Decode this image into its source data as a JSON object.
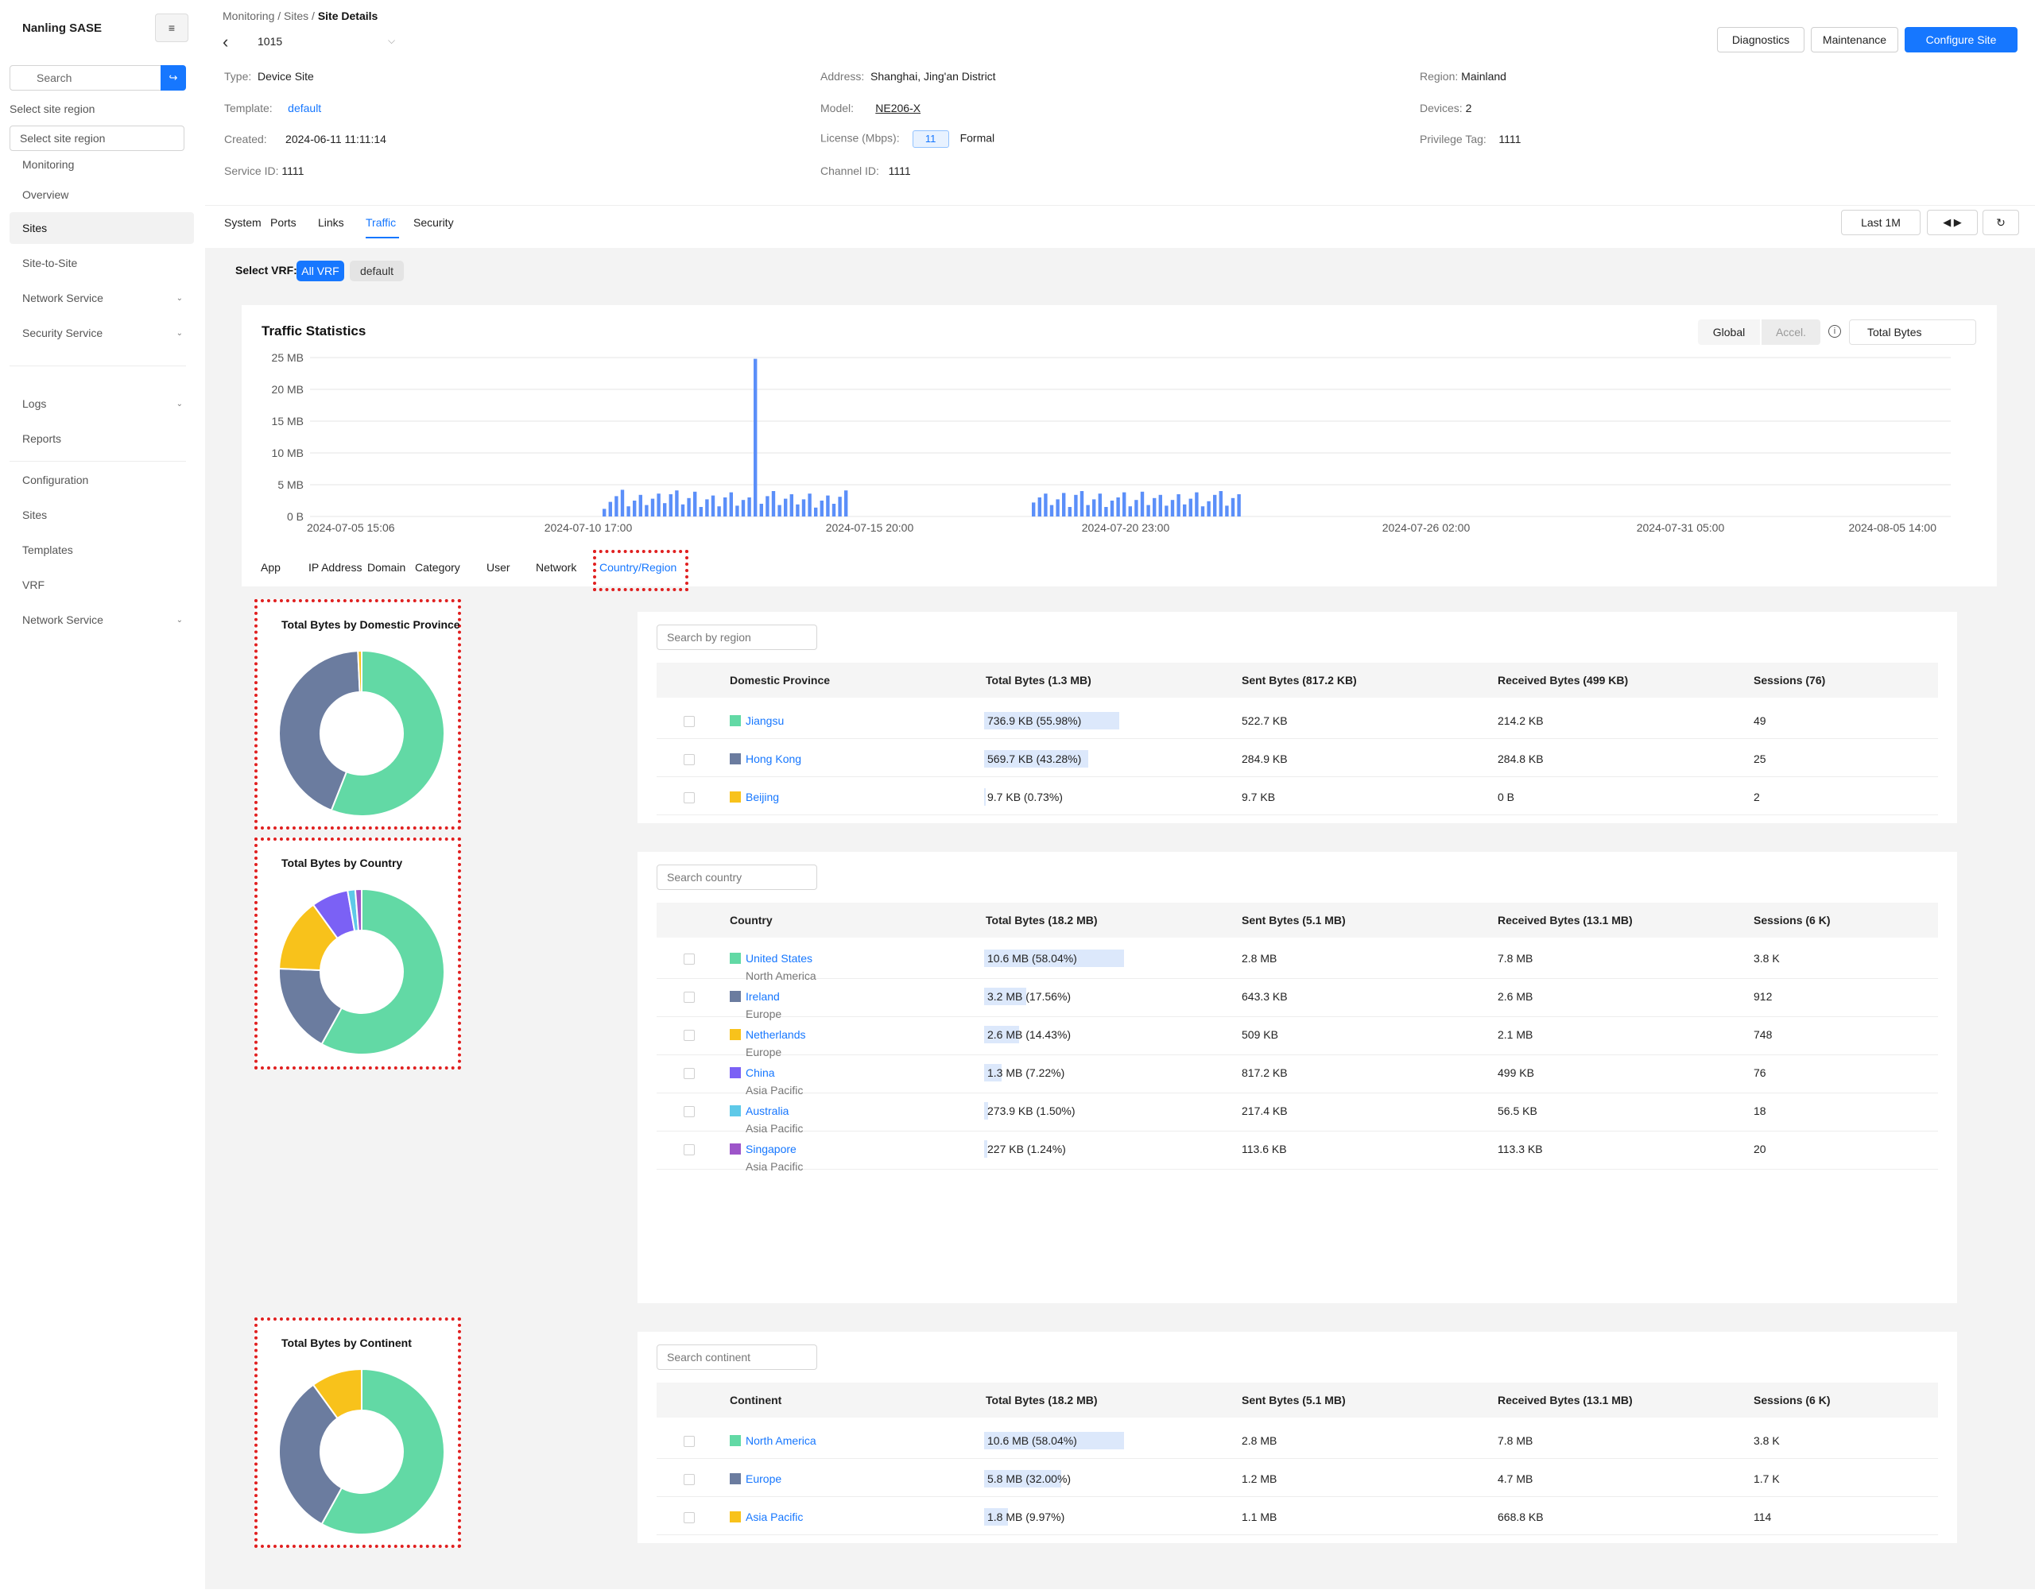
{
  "app": {
    "title": "Nanling SASE",
    "menu_icon": "hamburger-icon"
  },
  "sidebar": {
    "search_placeholder": "Search",
    "region_label": "Select site region",
    "region_placeholder": "Select site region",
    "items": [
      {
        "label": "Monitoring"
      },
      {
        "label": "Overview"
      },
      {
        "label": "Sites",
        "active": true
      },
      {
        "label": "Site-to-Site"
      },
      {
        "label": "Network Service"
      },
      {
        "label": "Security Service"
      },
      {
        "label": "Logs"
      },
      {
        "label": "Reports"
      },
      {
        "label": "Configuration"
      },
      {
        "label": "Sites"
      },
      {
        "label": "Templates"
      },
      {
        "label": "VRF"
      },
      {
        "label": "Network Service"
      }
    ]
  },
  "header": {
    "breadcrumb": "Monitoring / Sites / ",
    "breadcrumb_current": "Site Details",
    "site_id": "1015",
    "buttons": {
      "diagnostics": "Diagnostics",
      "maintenance": "Maintenance",
      "configure": "Configure Site"
    }
  },
  "info": {
    "type_label": "Type:",
    "type_value": "Device Site",
    "template_label": "Template:",
    "template_value": "default",
    "created_label": "Created:",
    "created_value": "2024-06-11 11:11:14",
    "service_label": "Service ID:",
    "service_value": "1111",
    "address_label": "Address:",
    "address_value": "Shanghai, Jing'an District",
    "model_label": "Model:",
    "model_value": "NE206-X",
    "license_label": "License (Mbps):",
    "license_value": "11",
    "license_type": "Formal",
    "channel_label": "Channel ID:",
    "channel_value": "1111",
    "region_label": "Region:",
    "region_value": "Mainland",
    "devices_label": "Devices:",
    "devices_value": "2",
    "privilege_label": "Privilege Tag:",
    "privilege_value": "1111"
  },
  "tabs": {
    "system": "System",
    "ports": "Ports",
    "links": "Links",
    "traffic": "Traffic",
    "security": "Security"
  },
  "controls": {
    "range": "Last 1M",
    "refresh_icon": "refresh-icon",
    "arrows": "◀ ▶"
  },
  "vrf": {
    "label": "Select VRF:",
    "all": "All VRF",
    "default": "default"
  },
  "traffic": {
    "title": "Traffic Statistics",
    "seg_global": "Global",
    "seg_accel": "Accel.",
    "metric": "Total Bytes"
  },
  "chart_data": {
    "type": "bar",
    "title": "Traffic Statistics",
    "y_ticks": [
      "0 B",
      "5 MB",
      "10 MB",
      "15 MB",
      "20 MB",
      "25 MB"
    ],
    "ylim": [
      0,
      25
    ],
    "x_tick_labels": [
      "2024-07-05 15:06",
      "2024-07-10 17:00",
      "2024-07-15 20:00",
      "2024-07-20 23:00",
      "2024-07-26 02:00",
      "2024-07-31 05:00",
      "2024-08-05 14:00"
    ],
    "bar_color": "#5b8ff9",
    "groups": [
      {
        "values_mb": [
          1.2,
          2.3,
          3.2,
          4.2,
          1.6,
          2.5,
          3.4,
          1.8,
          2.8,
          3.6,
          2.1,
          3.5,
          4.1,
          1.9,
          2.9,
          3.9,
          1.5,
          2.7,
          3.3,
          1.6,
          3.0,
          3.8,
          1.7,
          2.6,
          3.0,
          24.8,
          2.0,
          3.2,
          4.0,
          1.8,
          2.8,
          3.5,
          1.9,
          2.7,
          3.6,
          1.4,
          2.5,
          3.3,
          2.0,
          3.1,
          4.1
        ]
      },
      {
        "values_mb": [
          2.2,
          3.0,
          3.6,
          1.8,
          2.7,
          3.7,
          1.5,
          3.4,
          4.0,
          1.8,
          2.7,
          3.6,
          1.5,
          2.5,
          3.0,
          3.8,
          1.6,
          2.6,
          3.9,
          1.8,
          2.9,
          3.4,
          1.7,
          2.6,
          3.5,
          1.9,
          2.8,
          3.8,
          1.6,
          2.4,
          3.4,
          4.0,
          1.7,
          2.9,
          3.5
        ]
      }
    ]
  },
  "sub_tabs": {
    "app": "App",
    "ip": "IP Address",
    "domain": "Domain",
    "category": "Category",
    "user": "User",
    "network": "Network",
    "country": "Country/Region"
  },
  "province": {
    "donut_title": "Total Bytes by Domestic Province",
    "search_placeholder": "Search by region",
    "headers": {
      "name": "Domestic Province",
      "total": "Total Bytes (1.3 MB)",
      "sent": "Sent Bytes (817.2 KB)",
      "received": "Received Bytes (499 KB)",
      "sessions": "Sessions (76)"
    },
    "rows": [
      {
        "name": "Jiangsu",
        "color": "#62d9a5",
        "total": "736.9 KB (55.98%)",
        "pct": 55.98,
        "sent": "522.7 KB",
        "received": "214.2 KB",
        "sessions": "49"
      },
      {
        "name": "Hong Kong",
        "color": "#6b7c9f",
        "total": "569.7 KB (43.28%)",
        "pct": 43.28,
        "sent": "284.9 KB",
        "received": "284.8 KB",
        "sessions": "25"
      },
      {
        "name": "Beijing",
        "color": "#f8c21b",
        "total": "9.7 KB (0.73%)",
        "pct": 0.73,
        "sent": "9.7 KB",
        "received": "0 B",
        "sessions": "2"
      }
    ]
  },
  "country": {
    "donut_title": "Total Bytes by Country",
    "search_placeholder": "Search country",
    "headers": {
      "name": "Country",
      "total": "Total Bytes (18.2 MB)",
      "sent": "Sent Bytes (5.1 MB)",
      "received": "Received Bytes (13.1 MB)",
      "sessions": "Sessions (6 K)"
    },
    "rows": [
      {
        "name": "United States",
        "region": "North America",
        "color": "#62d9a5",
        "total": "10.6 MB (58.04%)",
        "pct": 58.04,
        "sent": "2.8 MB",
        "received": "7.8 MB",
        "sessions": "3.8 K"
      },
      {
        "name": "Ireland",
        "region": "Europe",
        "color": "#6b7c9f",
        "total": "3.2 MB (17.56%)",
        "pct": 17.56,
        "sent": "643.3 KB",
        "received": "2.6 MB",
        "sessions": "912"
      },
      {
        "name": "Netherlands",
        "region": "Europe",
        "color": "#f8c21b",
        "total": "2.6 MB (14.43%)",
        "pct": 14.43,
        "sent": "509 KB",
        "received": "2.1 MB",
        "sessions": "748"
      },
      {
        "name": "China",
        "region": "Asia Pacific",
        "color": "#7b61f5",
        "total": "1.3 MB (7.22%)",
        "pct": 7.22,
        "sent": "817.2 KB",
        "received": "499 KB",
        "sessions": "76"
      },
      {
        "name": "Australia",
        "region": "Asia Pacific",
        "color": "#5ec9e8",
        "total": "273.9 KB (1.50%)",
        "pct": 1.5,
        "sent": "217.4 KB",
        "received": "56.5 KB",
        "sessions": "18"
      },
      {
        "name": "Singapore",
        "region": "Asia Pacific",
        "color": "#9d55c9",
        "total": "227 KB (1.24%)",
        "pct": 1.24,
        "sent": "113.6 KB",
        "received": "113.3 KB",
        "sessions": "20"
      }
    ]
  },
  "continent": {
    "donut_title": "Total Bytes by Continent",
    "search_placeholder": "Search continent",
    "headers": {
      "name": "Continent",
      "total": "Total Bytes (18.2 MB)",
      "sent": "Sent Bytes (5.1 MB)",
      "received": "Received Bytes (13.1 MB)",
      "sessions": "Sessions (6 K)"
    },
    "rows": [
      {
        "name": "North America",
        "color": "#62d9a5",
        "total": "10.6 MB (58.04%)",
        "pct": 58.04,
        "sent": "2.8 MB",
        "received": "7.8 MB",
        "sessions": "3.8 K"
      },
      {
        "name": "Europe",
        "color": "#6b7c9f",
        "total": "5.8 MB (32.00%)",
        "pct": 32.0,
        "sent": "1.2 MB",
        "received": "4.7 MB",
        "sessions": "1.7 K"
      },
      {
        "name": "Asia Pacific",
        "color": "#f8c21b",
        "total": "1.8 MB (9.97%)",
        "pct": 9.97,
        "sent": "1.1 MB",
        "received": "668.8 KB",
        "sessions": "114"
      }
    ]
  }
}
